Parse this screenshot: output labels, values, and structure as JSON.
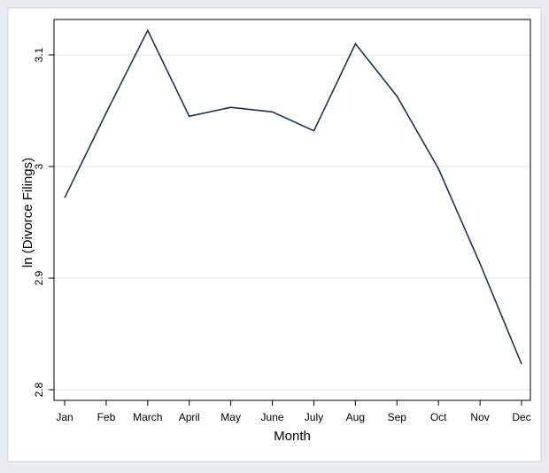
{
  "chart_data": {
    "type": "line",
    "xlabel": "Month",
    "ylabel": "ln (Divorce Filings)",
    "categories": [
      "Jan",
      "Feb",
      "March",
      "April",
      "May",
      "June",
      "July",
      "Aug",
      "Sep",
      "Oct",
      "Nov",
      "Dec"
    ],
    "series": [
      {
        "values": [
          2.972,
          3.048,
          3.122,
          3.045,
          3.053,
          3.049,
          3.032,
          3.11,
          3.063,
          2.998,
          2.913,
          2.823
        ]
      }
    ],
    "ylim": [
      2.8,
      3.12
    ],
    "yticks": [
      {
        "value": 2.8,
        "label": "2.8"
      },
      {
        "value": 2.9,
        "label": "2.9"
      },
      {
        "value": 3.0,
        "label": "3"
      },
      {
        "value": 3.1,
        "label": "3.1"
      }
    ],
    "grid": true,
    "colors": {
      "line": "#1a3350",
      "grid": "#e6edf2",
      "background": "#e8ecee",
      "plot": "#ffffff"
    }
  }
}
